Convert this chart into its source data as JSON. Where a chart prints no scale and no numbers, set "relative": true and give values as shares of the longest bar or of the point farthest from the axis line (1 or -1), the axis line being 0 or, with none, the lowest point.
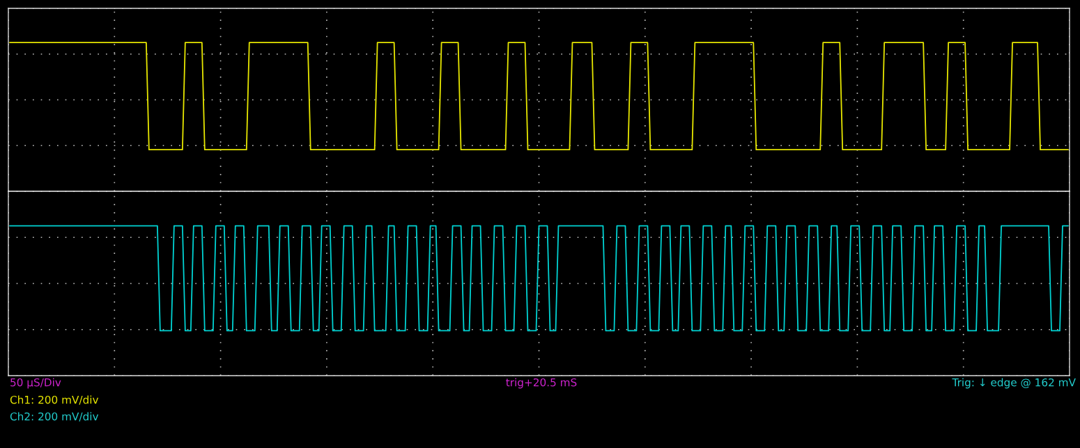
{
  "chart_data": [
    {
      "type": "line",
      "relative": true,
      "grid": true,
      "categories": [
        null,
        null,
        null,
        null,
        null,
        null,
        null,
        null,
        null,
        null,
        null,
        null,
        null,
        null,
        null,
        null,
        null,
        null,
        null,
        null,
        null,
        null,
        null,
        null,
        null,
        null,
        null,
        null,
        null,
        null,
        null,
        null,
        null,
        null,
        null,
        null,
        null,
        null,
        null,
        null,
        null,
        null,
        null,
        null,
        null,
        null,
        null,
        null,
        null,
        null,
        null,
        null,
        null,
        null,
        null,
        null,
        null,
        null,
        null,
        null,
        null,
        null,
        null,
        null,
        null,
        null,
        null,
        null,
        null,
        null,
        null,
        null,
        null,
        null,
        null,
        null,
        null,
        null,
        null,
        null,
        null,
        null,
        null,
        null,
        null,
        null,
        null,
        null,
        null,
        null,
        null,
        null,
        null,
        null,
        null,
        null,
        null,
        null,
        null,
        null,
        null,
        null,
        null,
        null,
        null,
        null,
        null,
        null,
        null,
        null,
        null,
        null,
        null,
        null,
        null,
        null,
        null,
        null,
        null,
        null,
        null,
        null,
        null,
        null,
        null,
        null,
        null,
        null,
        null,
        null,
        null,
        null,
        null,
        null,
        null,
        null,
        null,
        null,
        null,
        null,
        null,
        null,
        null,
        null,
        null,
        null,
        null,
        null,
        null,
        null,
        null,
        null,
        null,
        null,
        null,
        null,
        null,
        null,
        null,
        null,
        null,
        null,
        null,
        null,
        null,
        null,
        null,
        null,
        null,
        null,
        null,
        null,
        null,
        null,
        null,
        null,
        null,
        null,
        null,
        null,
        null,
        null,
        null,
        null,
        null,
        null,
        null,
        null,
        null,
        null,
        null,
        null,
        null,
        null,
        null,
        null,
        null,
        null,
        null,
        null,
        null,
        null,
        null,
        null,
        null,
        null,
        null,
        null,
        null,
        null,
        null,
        null,
        null,
        null,
        null,
        null,
        null,
        null,
        null,
        null,
        null,
        null,
        null,
        null,
        null,
        null,
        null,
        null,
        null,
        null,
        null,
        null,
        null,
        null,
        null,
        null,
        null,
        null,
        null,
        null,
        null,
        null,
        null,
        null,
        null,
        null,
        null,
        null,
        null,
        null,
        null,
        null,
        null,
        null,
        null,
        null,
        null,
        null,
        null,
        null,
        null,
        null,
        null,
        null,
        null,
        null,
        null,
        null,
        null,
        null,
        null,
        null,
        null,
        null,
        null,
        null,
        null,
        null,
        null,
        null,
        null,
        null,
        null,
        null,
        null,
        null,
        null,
        null,
        null,
        null,
        null,
        null,
        null,
        null,
        null,
        null,
        null,
        null,
        null,
        null,
        null,
        null,
        null,
        null,
        null,
        null,
        null,
        null,
        null,
        null,
        null,
        null,
        null,
        null,
        null,
        null,
        null,
        null,
        null,
        null,
        null,
        null,
        null,
        null,
        null,
        null,
        null,
        null,
        null,
        null,
        null,
        null,
        null,
        null,
        null,
        null,
        null,
        null,
        null,
        null,
        null,
        null,
        null,
        null,
        null,
        null,
        null,
        null,
        null,
        null,
        null,
        null,
        null,
        null,
        null,
        null,
        null,
        null,
        null,
        null,
        null,
        null,
        null,
        null,
        null,
        null,
        null,
        null,
        null,
        null,
        null,
        null,
        null,
        null,
        null,
        null,
        null,
        null,
        null,
        null,
        null
      ],
      "series": [
        {
          "color": "#e6e600",
          "values": [
            1,
            1,
            1,
            1,
            1,
            1,
            1,
            1,
            1,
            1,
            1,
            1,
            1,
            1,
            1,
            1,
            1,
            1,
            1,
            1,
            1,
            1,
            1,
            1,
            1,
            1,
            1,
            1,
            1,
            1,
            1,
            1,
            1,
            1,
            1,
            1,
            1,
            1,
            1,
            1,
            1,
            1,
            1,
            1,
            1,
            1,
            1,
            1,
            1,
            1,
            0.28,
            0.28,
            0.28,
            0.28,
            0.28,
            0.28,
            0.28,
            0.28,
            0.28,
            0.28,
            0.28,
            0.28,
            0.28,
            1,
            1,
            1,
            1,
            1,
            1,
            1,
            0.28,
            0.28,
            0.28,
            0.28,
            0.28,
            0.28,
            0.28,
            0.28,
            0.28,
            0.28,
            0.28,
            0.28,
            0.28,
            0.28,
            0.28,
            0.28,
            1,
            1,
            1,
            1,
            1,
            1,
            1,
            1,
            1,
            1,
            1,
            1,
            1,
            1,
            1,
            1,
            1,
            1,
            1,
            1,
            1,
            1,
            0.28,
            0.28,
            0.28,
            0.28,
            0.28,
            0.28,
            0.28,
            0.28,
            0.28,
            0.28,
            0.28,
            0.28,
            0.28,
            0.28,
            0.28,
            0.28,
            0.28,
            0.28,
            0.28,
            0.28,
            0.28,
            0.28,
            0.28,
            0.28,
            1,
            1,
            1,
            1,
            1,
            1,
            1,
            0.28,
            0.28,
            0.28,
            0.28,
            0.28,
            0.28,
            0.28,
            0.28,
            0.28,
            0.28,
            0.28,
            0.28,
            0.28,
            0.28,
            0.28,
            0.28,
            1,
            1,
            1,
            1,
            1,
            1,
            1,
            0.28,
            0.28,
            0.28,
            0.28,
            0.28,
            0.28,
            0.28,
            0.28,
            0.28,
            0.28,
            0.28,
            0.28,
            0.28,
            0.28,
            0.28,
            0.28,
            0.28,
            1,
            1,
            1,
            1,
            1,
            1,
            1,
            0.28,
            0.28,
            0.28,
            0.28,
            0.28,
            0.28,
            0.28,
            0.28,
            0.28,
            0.28,
            0.28,
            0.28,
            0.28,
            0.28,
            0.28,
            0.28,
            1,
            1,
            1,
            1,
            1,
            1,
            1,
            1,
            0.28,
            0.28,
            0.28,
            0.28,
            0.28,
            0.28,
            0.28,
            0.28,
            0.28,
            0.28,
            0.28,
            0.28,
            0.28,
            1,
            1,
            1,
            1,
            1,
            1,
            1,
            0.28,
            0.28,
            0.28,
            0.28,
            0.28,
            0.28,
            0.28,
            0.28,
            0.28,
            0.28,
            0.28,
            0.28,
            0.28,
            0.28,
            0.28,
            0.28,
            1,
            1,
            1,
            1,
            1,
            1,
            1,
            1,
            1,
            1,
            1,
            1,
            1,
            1,
            1,
            1,
            1,
            1,
            1,
            1,
            1,
            1,
            0.28,
            0.28,
            0.28,
            0.28,
            0.28,
            0.28,
            0.28,
            0.28,
            0.28,
            0.28,
            0.28,
            0.28,
            0.28,
            0.28,
            0.28,
            0.28,
            0.28,
            0.28,
            0.28,
            0.28,
            0.28,
            0.28,
            0.28,
            0.28,
            1,
            1,
            1,
            1,
            1,
            1,
            1,
            0.28,
            0.28,
            0.28,
            0.28,
            0.28,
            0.28,
            0.28,
            0.28,
            0.28,
            0.28,
            0.28,
            0.28,
            0.28,
            0.28,
            0.28,
            1,
            1,
            1,
            1,
            1,
            1,
            1,
            1,
            1,
            1,
            1,
            1,
            1,
            1,
            1,
            0.28,
            0.28,
            0.28,
            0.28,
            0.28,
            0.28,
            0.28,
            0.28,
            1,
            1,
            1,
            1,
            1,
            1,
            1,
            0.28,
            0.28,
            0.28,
            0.28,
            0.28,
            0.28,
            0.28,
            0.28,
            0.28,
            0.28,
            0.28,
            0.28,
            0.28,
            0.28,
            0.28,
            0.28,
            1,
            1,
            1,
            1,
            1,
            1,
            1,
            1,
            1,
            1,
            0.28,
            0.28,
            0.28,
            0.28,
            0.28,
            0.28,
            0.28,
            0.28,
            0.28,
            0.28,
            0.28
          ]
        }
      ]
    },
    {
      "type": "line",
      "relative": true,
      "grid": true,
      "categories": [
        null,
        null,
        null,
        null,
        null,
        null,
        null,
        null,
        null,
        null,
        null,
        null,
        null,
        null,
        null,
        null,
        null,
        null,
        null,
        null,
        null,
        null,
        null,
        null,
        null,
        null,
        null,
        null,
        null,
        null,
        null,
        null,
        null,
        null,
        null,
        null,
        null,
        null,
        null,
        null,
        null,
        null,
        null,
        null,
        null,
        null,
        null,
        null,
        null,
        null,
        null,
        null,
        null,
        null,
        null,
        null,
        null,
        null,
        null,
        null,
        null,
        null,
        null,
        null,
        null,
        null,
        null,
        null,
        null,
        null,
        null,
        null,
        null,
        null,
        null,
        null,
        null,
        null,
        null,
        null,
        null,
        null,
        null,
        null,
        null,
        null,
        null,
        null,
        null,
        null,
        null,
        null,
        null,
        null,
        null,
        null,
        null,
        null,
        null,
        null,
        null,
        null,
        null,
        null,
        null,
        null,
        null,
        null,
        null,
        null,
        null,
        null,
        null,
        null,
        null,
        null,
        null,
        null,
        null,
        null,
        null,
        null,
        null,
        null,
        null,
        null,
        null,
        null,
        null,
        null,
        null,
        null,
        null,
        null,
        null,
        null,
        null,
        null,
        null,
        null,
        null,
        null,
        null,
        null,
        null,
        null,
        null,
        null,
        null,
        null,
        null,
        null,
        null,
        null,
        null,
        null,
        null,
        null,
        null,
        null,
        null,
        null,
        null,
        null,
        null,
        null,
        null,
        null,
        null,
        null,
        null,
        null,
        null,
        null,
        null,
        null,
        null,
        null,
        null,
        null,
        null,
        null,
        null,
        null,
        null,
        null,
        null,
        null,
        null,
        null,
        null,
        null,
        null,
        null,
        null,
        null,
        null,
        null,
        null,
        null,
        null,
        null,
        null,
        null,
        null,
        null,
        null,
        null,
        null,
        null,
        null,
        null,
        null,
        null,
        null,
        null,
        null,
        null,
        null,
        null,
        null,
        null,
        null,
        null,
        null,
        null,
        null,
        null,
        null,
        null,
        null,
        null,
        null,
        null,
        null,
        null,
        null,
        null,
        null,
        null,
        null,
        null,
        null,
        null,
        null,
        null,
        null,
        null,
        null,
        null,
        null,
        null,
        null,
        null,
        null,
        null,
        null,
        null,
        null,
        null,
        null,
        null,
        null,
        null,
        null,
        null,
        null,
        null,
        null,
        null,
        null,
        null,
        null,
        null,
        null,
        null,
        null,
        null,
        null,
        null,
        null,
        null,
        null,
        null,
        null,
        null,
        null,
        null,
        null,
        null,
        null,
        null,
        null,
        null,
        null,
        null,
        null,
        null,
        null,
        null,
        null,
        null,
        null,
        null,
        null,
        null,
        null,
        null,
        null,
        null,
        null,
        null,
        null,
        null,
        null,
        null,
        null,
        null,
        null,
        null,
        null,
        null,
        null,
        null,
        null,
        null,
        null,
        null,
        null,
        null,
        null,
        null,
        null,
        null,
        null,
        null,
        null,
        null,
        null,
        null,
        null,
        null,
        null,
        null,
        null,
        null,
        null,
        null,
        null,
        null,
        null,
        null,
        null,
        null,
        null,
        null,
        null,
        null,
        null,
        null,
        null,
        null,
        null,
        null,
        null,
        null,
        null,
        null,
        null,
        null,
        null,
        null,
        null,
        null,
        null,
        null,
        null,
        null,
        null,
        null,
        null
      ],
      "series": [
        {
          "color": "#00d2d2",
          "values": [
            1,
            1,
            1,
            1,
            1,
            1,
            1,
            1,
            1,
            1,
            1,
            1,
            1,
            1,
            1,
            1,
            1,
            1,
            1,
            1,
            1,
            1,
            1,
            1,
            1,
            1,
            1,
            1,
            1,
            1,
            1,
            1,
            1,
            1,
            1,
            1,
            1,
            1,
            1,
            1,
            1,
            1,
            1,
            1,
            1,
            1,
            1,
            1,
            1,
            1,
            1,
            1,
            1,
            1,
            0.3,
            0.3,
            0.3,
            0.3,
            0.3,
            1,
            1,
            1,
            1,
            0.3,
            0.3,
            0.3,
            1,
            1,
            1,
            1,
            0.3,
            0.3,
            0.3,
            0.3,
            1,
            1,
            1,
            1,
            0.3,
            0.3,
            0.3,
            1,
            1,
            1,
            1,
            0.3,
            0.3,
            0.3,
            0.3,
            1,
            1,
            1,
            1,
            1,
            0.3,
            0.3,
            0.3,
            1,
            1,
            1,
            1,
            0.3,
            0.3,
            0.3,
            0.3,
            1,
            1,
            1,
            1,
            0.3,
            0.3,
            0.3,
            1,
            1,
            1,
            1,
            0.3,
            0.3,
            0.3,
            0.3,
            1,
            1,
            1,
            1,
            0.3,
            0.3,
            0.3,
            0.3,
            1,
            1,
            1,
            0.3,
            0.3,
            0.3,
            0.3,
            0.3,
            1,
            1,
            1,
            0.3,
            0.3,
            0.3,
            0.3,
            1,
            1,
            1,
            1,
            0.3,
            0.3,
            0.3,
            0.3,
            1,
            1,
            1,
            0.3,
            0.3,
            0.3,
            0.3,
            0.3,
            1,
            1,
            1,
            1,
            0.3,
            0.3,
            0.3,
            1,
            1,
            1,
            1,
            0.3,
            0.3,
            0.3,
            0.3,
            1,
            1,
            1,
            1,
            0.3,
            0.3,
            0.3,
            0.3,
            1,
            1,
            1,
            1,
            0.3,
            0.3,
            0.3,
            0.3,
            1,
            1,
            1,
            1,
            0.3,
            0.3,
            0.3,
            1,
            1,
            1,
            1,
            1,
            1,
            1,
            1,
            1,
            1,
            1,
            1,
            1,
            1,
            1,
            1,
            1,
            0.3,
            0.3,
            0.3,
            0.3,
            1,
            1,
            1,
            1,
            0.3,
            0.3,
            0.3,
            0.3,
            1,
            1,
            1,
            1,
            0.3,
            0.3,
            0.3,
            0.3,
            1,
            1,
            1,
            1,
            0.3,
            0.3,
            0.3,
            1,
            1,
            1,
            1,
            0.3,
            0.3,
            0.3,
            0.3,
            1,
            1,
            1,
            1,
            0.3,
            0.3,
            0.3,
            0.3,
            1,
            1,
            1,
            0.3,
            0.3,
            0.3,
            0.3,
            1,
            1,
            1,
            1,
            0.3,
            0.3,
            0.3,
            0.3,
            1,
            1,
            1,
            1,
            0.3,
            0.3,
            0.3,
            1,
            1,
            1,
            1,
            0.3,
            0.3,
            0.3,
            0.3,
            1,
            1,
            1,
            1,
            0.3,
            0.3,
            0.3,
            0.3,
            1,
            1,
            1,
            0.3,
            0.3,
            0.3,
            0.3,
            1,
            1,
            1,
            1,
            0.3,
            0.3,
            0.3,
            0.3,
            1,
            1,
            1,
            1,
            0.3,
            0.3,
            0.3,
            1,
            1,
            1,
            1,
            0.3,
            0.3,
            0.3,
            0.3,
            1,
            1,
            1,
            1,
            0.3,
            0.3,
            0.3,
            1,
            1,
            1,
            1,
            0.3,
            0.3,
            0.3,
            0.3,
            1,
            1,
            1,
            1,
            0.3,
            0.3,
            0.3,
            0.3,
            1,
            1,
            1,
            0.3,
            0.3,
            0.3,
            0.3,
            0.3,
            1,
            1,
            1,
            1,
            1,
            1,
            1,
            1,
            1,
            1,
            1,
            1,
            1,
            1,
            1,
            1,
            1,
            1,
            0.3,
            0.3,
            0.3,
            0.3,
            1,
            1,
            1
          ]
        }
      ],
      "annotations": [
        "50 µS/Div",
        "trig+20.5 mS",
        "Trig: ↓ edge @ 162 mV",
        "Ch1: 200 mV/div",
        "Ch2: 200 mV/div"
      ]
    }
  ]
}
